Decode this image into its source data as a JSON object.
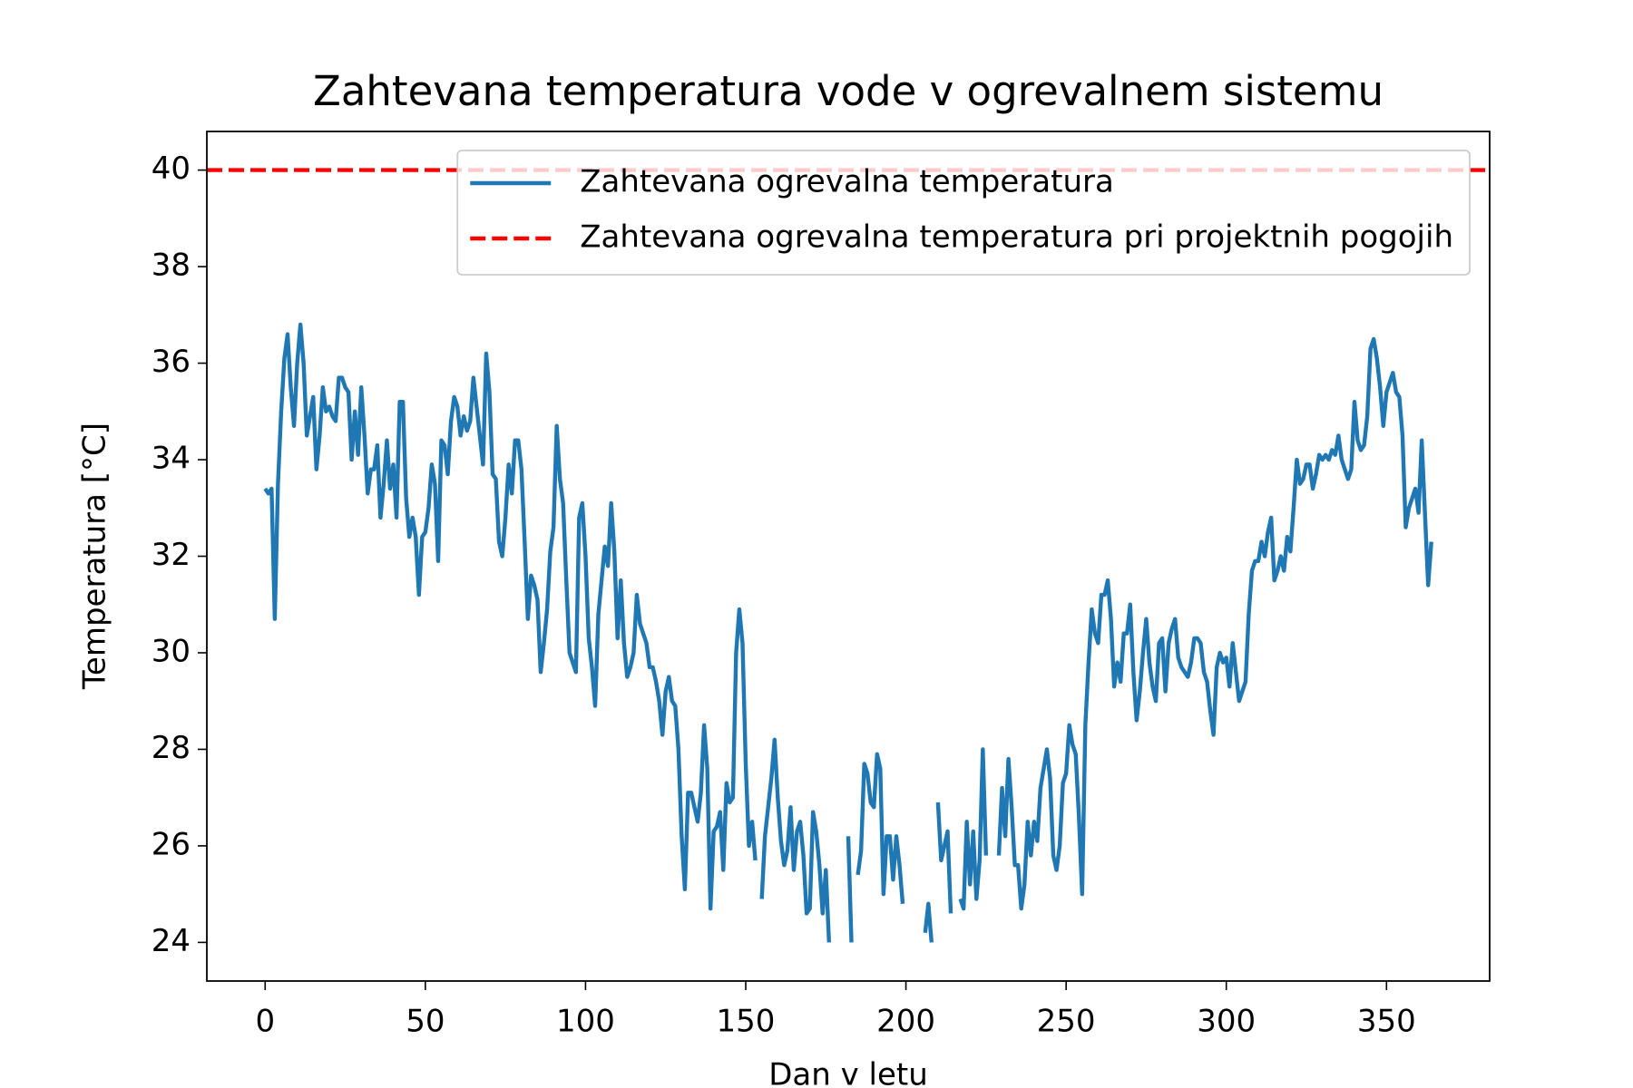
{
  "chart_data": {
    "type": "line",
    "title": "Zahtevana temperatura vode v ogrevalnem sistemu",
    "xlabel": "Dan v letu",
    "ylabel": "Temperatura [°C]",
    "x": [
      0,
      1,
      2,
      3,
      4,
      5,
      6,
      7,
      8,
      9,
      10,
      11,
      12,
      13,
      14,
      15,
      16,
      17,
      18,
      19,
      20,
      21,
      22,
      23,
      24,
      25,
      26,
      27,
      28,
      29,
      30,
      31,
      32,
      33,
      34,
      35,
      36,
      37,
      38,
      39,
      40,
      41,
      42,
      43,
      44,
      45,
      46,
      47,
      48,
      49,
      50,
      51,
      52,
      53,
      54,
      55,
      56,
      57,
      58,
      59,
      60,
      61,
      62,
      63,
      64,
      65,
      66,
      67,
      68,
      69,
      70,
      71,
      72,
      73,
      74,
      75,
      76,
      77,
      78,
      79,
      80,
      81,
      82,
      83,
      84,
      85,
      86,
      87,
      88,
      89,
      90,
      91,
      92,
      93,
      94,
      95,
      96,
      97,
      98,
      99,
      100,
      101,
      102,
      103,
      104,
      105,
      106,
      107,
      108,
      109,
      110,
      111,
      112,
      113,
      114,
      115,
      116,
      117,
      118,
      119,
      120,
      121,
      122,
      123,
      124,
      125,
      126,
      127,
      128,
      129,
      130,
      131,
      132,
      133,
      134,
      135,
      136,
      137,
      138,
      139,
      140,
      141,
      142,
      143,
      144,
      145,
      146,
      147,
      148,
      149,
      150,
      151,
      152,
      153,
      154,
      155,
      156,
      157,
      158,
      159,
      160,
      161,
      162,
      163,
      164,
      165,
      166,
      167,
      168,
      169,
      170,
      171,
      172,
      173,
      174,
      175,
      176,
      177,
      178,
      179,
      180,
      181,
      182,
      183,
      184,
      185,
      186,
      187,
      188,
      189,
      190,
      191,
      192,
      193,
      194,
      195,
      196,
      197,
      198,
      199,
      200,
      201,
      202,
      203,
      204,
      205,
      206,
      207,
      208,
      209,
      210,
      211,
      212,
      213,
      214,
      215,
      216,
      217,
      218,
      219,
      220,
      221,
      222,
      223,
      224,
      225,
      226,
      227,
      228,
      229,
      230,
      231,
      232,
      233,
      234,
      235,
      236,
      237,
      238,
      239,
      240,
      241,
      242,
      243,
      244,
      245,
      246,
      247,
      248,
      249,
      250,
      251,
      252,
      253,
      254,
      255,
      256,
      257,
      258,
      259,
      260,
      261,
      262,
      263,
      264,
      265,
      266,
      267,
      268,
      269,
      270,
      271,
      272,
      273,
      274,
      275,
      276,
      277,
      278,
      279,
      280,
      281,
      282,
      283,
      284,
      285,
      286,
      287,
      288,
      289,
      290,
      291,
      292,
      293,
      294,
      295,
      296,
      297,
      298,
      299,
      300,
      301,
      302,
      303,
      304,
      305,
      306,
      307,
      308,
      309,
      310,
      311,
      312,
      313,
      314,
      315,
      316,
      317,
      318,
      319,
      320,
      321,
      322,
      323,
      324,
      325,
      326,
      327,
      328,
      329,
      330,
      331,
      332,
      333,
      334,
      335,
      336,
      337,
      338,
      339,
      340,
      341,
      342,
      343,
      344,
      345,
      346,
      347,
      348,
      349,
      350,
      351,
      352,
      353,
      354,
      355,
      356,
      357,
      358,
      359,
      360,
      361,
      362,
      363,
      364
    ],
    "series": [
      {
        "name": "Zahtevana ogrevalna temperatura",
        "color": "#1f77b4",
        "values": [
          33.4,
          33.3,
          33.4,
          30.7,
          33.5,
          35.0,
          36.1,
          36.6,
          35.5,
          34.7,
          36.0,
          36.8,
          36.0,
          34.5,
          34.9,
          35.3,
          33.8,
          34.5,
          35.5,
          35.0,
          35.1,
          34.9,
          34.8,
          35.7,
          35.7,
          35.5,
          35.4,
          34.0,
          35.0,
          34.1,
          35.5,
          34.5,
          33.3,
          33.8,
          33.8,
          34.3,
          32.8,
          33.5,
          34.4,
          33.4,
          33.9,
          32.8,
          35.2,
          35.2,
          33.2,
          32.4,
          32.8,
          32.4,
          31.2,
          32.4,
          32.5,
          33.0,
          33.9,
          33.5,
          31.9,
          34.4,
          34.3,
          33.7,
          34.8,
          35.3,
          35.1,
          34.5,
          34.9,
          34.6,
          34.8,
          35.7,
          35.1,
          34.5,
          33.9,
          36.2,
          35.4,
          33.7,
          33.6,
          32.3,
          32.0,
          32.8,
          33.9,
          33.3,
          34.4,
          34.4,
          33.8,
          32.3,
          30.7,
          31.6,
          31.4,
          31.1,
          29.6,
          30.2,
          30.9,
          32.1,
          32.6,
          34.7,
          33.6,
          33.1,
          31.5,
          30.0,
          29.8,
          29.6,
          32.8,
          33.1,
          32.0,
          30.3,
          29.7,
          28.9,
          30.8,
          31.5,
          32.2,
          31.8,
          33.1,
          32.1,
          30.3,
          31.5,
          30.2,
          29.5,
          29.7,
          30.0,
          31.2,
          30.6,
          30.4,
          30.2,
          29.7,
          29.7,
          29.4,
          29.0,
          28.3,
          29.2,
          29.5,
          29.0,
          28.9,
          28.0,
          26.2,
          25.1,
          27.1,
          27.1,
          26.8,
          26.5,
          27.1,
          28.5,
          27.6,
          24.7,
          26.3,
          26.4,
          26.7,
          25.5,
          27.3,
          26.9,
          27.0,
          30.0,
          30.9,
          30.2,
          27.7,
          26.0,
          26.5,
          25.7,
          null,
          24.9,
          26.2,
          26.8,
          27.4,
          28.2,
          27.0,
          26.1,
          25.6,
          25.9,
          26.8,
          25.5,
          26.3,
          26.5,
          25.8,
          24.6,
          24.7,
          26.7,
          26.3,
          25.6,
          24.6,
          25.5,
          24.0,
          null,
          null,
          null,
          null,
          null,
          26.2,
          24.0,
          null,
          25.4,
          25.9,
          27.7,
          27.5,
          26.9,
          26.8,
          27.9,
          27.6,
          25.0,
          26.2,
          26.2,
          25.3,
          26.2,
          25.6,
          24.8,
          null,
          null,
          null,
          null,
          null,
          null,
          24.2,
          24.8,
          24.0,
          null,
          26.9,
          25.7,
          26.0,
          26.3,
          24.6,
          null,
          null,
          24.9,
          24.7,
          26.5,
          25.2,
          26.3,
          24.9,
          25.7,
          28.0,
          25.8,
          null,
          null,
          null,
          25.8,
          27.2,
          26.2,
          27.8,
          26.8,
          25.6,
          25.6,
          24.7,
          25.2,
          26.5,
          25.8,
          26.5,
          26.1,
          27.2,
          27.6,
          28.0,
          27.4,
          25.8,
          25.5,
          26.0,
          27.3,
          27.5,
          28.5,
          28.1,
          27.9,
          26.6,
          25.0,
          28.5,
          29.8,
          30.9,
          30.4,
          30.2,
          31.2,
          31.2,
          31.5,
          30.7,
          29.3,
          29.8,
          29.4,
          30.4,
          30.4,
          31.0,
          29.6,
          28.6,
          29.2,
          30.0,
          30.7,
          29.8,
          29.3,
          29.0,
          30.2,
          30.3,
          29.2,
          30.2,
          30.5,
          30.7,
          29.9,
          29.7,
          29.6,
          29.5,
          29.8,
          30.3,
          30.3,
          30.2,
          29.6,
          29.4,
          28.8,
          28.3,
          29.7,
          30.0,
          29.8,
          29.9,
          29.3,
          30.2,
          29.6,
          29.0,
          29.2,
          29.4,
          30.8,
          31.7,
          31.9,
          31.9,
          32.3,
          32.0,
          32.5,
          32.8,
          31.5,
          31.7,
          32.0,
          31.7,
          32.4,
          32.1,
          33.0,
          34.0,
          33.5,
          33.6,
          33.9,
          33.9,
          33.4,
          33.7,
          34.1,
          34.0,
          34.1,
          34.0,
          34.2,
          34.1,
          34.5,
          34.0,
          33.8,
          33.6,
          33.8,
          35.2,
          34.4,
          34.2,
          34.3,
          34.9,
          36.3,
          36.5,
          36.1,
          35.5,
          34.7,
          35.4,
          35.6,
          35.8,
          35.4,
          35.3,
          34.5,
          32.6,
          33.0,
          33.2,
          33.4,
          32.9,
          34.4,
          32.9,
          31.4,
          32.3
        ]
      }
    ],
    "reference_lines": [
      {
        "name": "Zahtevana ogrevalna temperatura pri projektnih pogojih",
        "value": 40,
        "color": "#ff0000",
        "style": "dashed"
      }
    ],
    "xlim": [
      -18.2,
      382.2
    ],
    "ylim": [
      23.2,
      40.8
    ],
    "xticks": [
      0,
      50,
      100,
      150,
      200,
      250,
      300,
      350
    ],
    "yticks": [
      24,
      26,
      28,
      30,
      32,
      34,
      36,
      38,
      40
    ],
    "grid": false,
    "legend": "upper right"
  }
}
